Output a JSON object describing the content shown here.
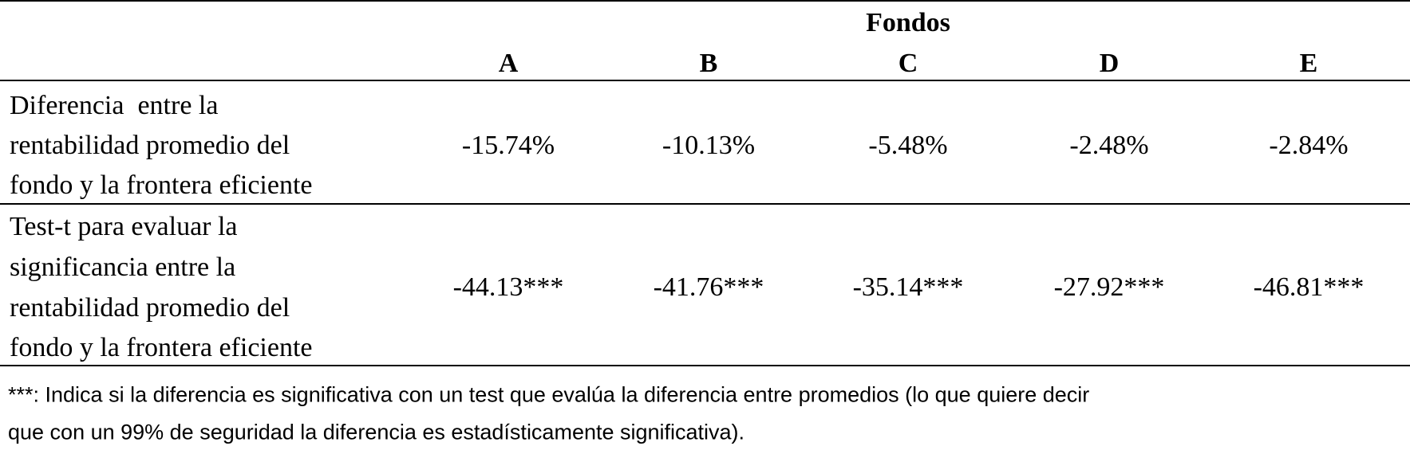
{
  "table": {
    "group_header": "Fondos",
    "columns": [
      "A",
      "B",
      "C",
      "D",
      "E"
    ],
    "rows": [
      {
        "label": [
          "Diferencia  entre la",
          "rentabilidad promedio del",
          "fondo y la frontera eficiente"
        ],
        "values": [
          "-15.74%",
          "-10.13%",
          "-5.48%",
          "-2.48%",
          "-2.84%"
        ]
      },
      {
        "label": [
          "Test-t para evaluar la",
          "significancia entre la",
          "rentabilidad promedio del",
          "fondo y la frontera eficiente"
        ],
        "values": [
          "-44.13***",
          "-41.76***",
          "-35.14***",
          "-27.92***",
          "-46.81***"
        ]
      }
    ],
    "footnote": [
      "***: Indica si la diferencia es significativa con un test que evalúa la diferencia entre promedios (lo que quiere decir",
      "que con un 99% de seguridad la diferencia es estadísticamente significativa)."
    ]
  }
}
